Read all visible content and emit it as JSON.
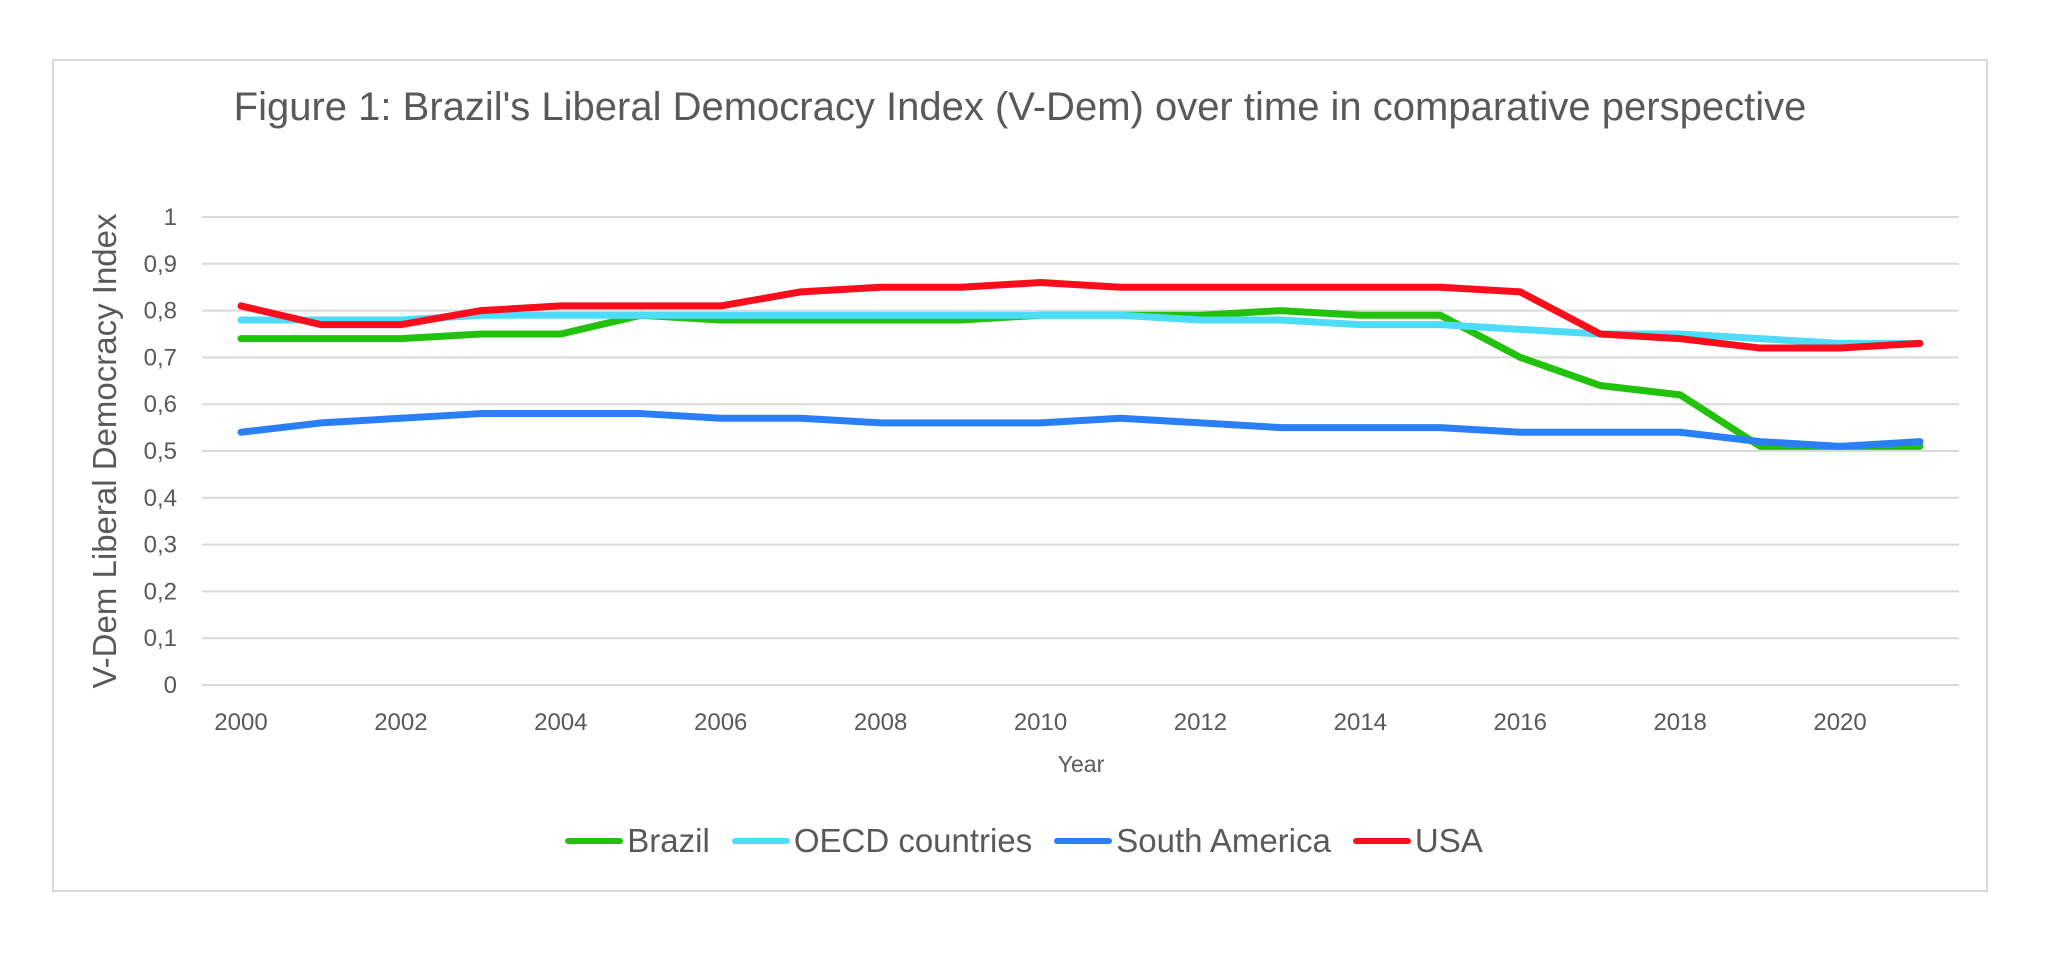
{
  "chart_data": {
    "type": "line",
    "title": "Figure 1: Brazil's Liberal Democracy Index (V-Dem) over time in comparative perspective",
    "xlabel": "Year",
    "ylabel": "V-Dem Liberal Democracy Index",
    "ylim": [
      0,
      1
    ],
    "yticks": [
      "0",
      "0,1",
      "0,2",
      "0,3",
      "0,4",
      "0,5",
      "0,6",
      "0,7",
      "0,8",
      "0,9",
      "1"
    ],
    "xticks": [
      "2000",
      "2002",
      "2004",
      "2006",
      "2008",
      "2010",
      "2012",
      "2014",
      "2016",
      "2018",
      "2020"
    ],
    "grid": true,
    "legend_position": "bottom",
    "x": [
      2000,
      2001,
      2002,
      2003,
      2004,
      2005,
      2006,
      2007,
      2008,
      2009,
      2010,
      2011,
      2012,
      2013,
      2014,
      2015,
      2016,
      2017,
      2018,
      2019,
      2020,
      2021
    ],
    "series": [
      {
        "name": "Brazil",
        "color": "#22c20c",
        "values": [
          0.74,
          0.74,
          0.74,
          0.75,
          0.75,
          0.79,
          0.78,
          0.78,
          0.78,
          0.78,
          0.79,
          0.79,
          0.79,
          0.8,
          0.79,
          0.79,
          0.7,
          0.64,
          0.62,
          0.51,
          0.51,
          0.51
        ]
      },
      {
        "name": "OECD countries",
        "color": "#4ddcfa",
        "values": [
          0.78,
          0.78,
          0.78,
          0.79,
          0.79,
          0.79,
          0.79,
          0.79,
          0.79,
          0.79,
          0.79,
          0.79,
          0.78,
          0.78,
          0.77,
          0.77,
          0.76,
          0.75,
          0.75,
          0.74,
          0.73,
          0.73
        ]
      },
      {
        "name": "South America",
        "color": "#2a7ff7",
        "values": [
          0.54,
          0.56,
          0.57,
          0.58,
          0.58,
          0.58,
          0.57,
          0.57,
          0.56,
          0.56,
          0.56,
          0.57,
          0.56,
          0.55,
          0.55,
          0.55,
          0.54,
          0.54,
          0.54,
          0.52,
          0.51,
          0.52
        ]
      },
      {
        "name": "USA",
        "color": "#fc0d1b",
        "values": [
          0.81,
          0.77,
          0.77,
          0.8,
          0.81,
          0.81,
          0.81,
          0.84,
          0.85,
          0.85,
          0.86,
          0.85,
          0.85,
          0.85,
          0.85,
          0.85,
          0.84,
          0.75,
          0.74,
          0.72,
          0.72,
          0.73
        ]
      }
    ]
  }
}
